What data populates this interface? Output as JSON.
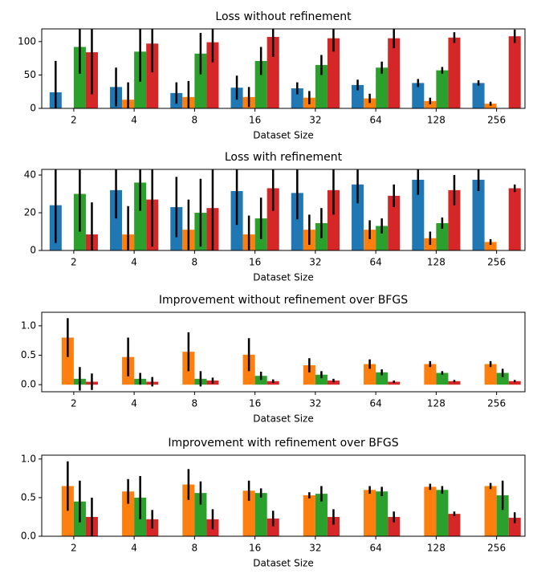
{
  "chart_data": [
    {
      "type": "bar",
      "title": "Loss without refinement",
      "xlabel": "Dataset Size",
      "categories": [
        "2",
        "4",
        "8",
        "16",
        "32",
        "64",
        "128",
        "256"
      ],
      "ylim": [
        0,
        119
      ],
      "yticks": [
        0,
        50,
        100
      ],
      "series": [
        {
          "color": "#1f77b4",
          "values": [
            24,
            32,
            23,
            31,
            30,
            35,
            38,
            38
          ],
          "errors": [
            47,
            29,
            16,
            18,
            9,
            8,
            6,
            4
          ]
        },
        {
          "color": "#ff7f0e",
          "values": [
            null,
            13,
            17,
            17,
            16,
            15,
            11,
            7
          ],
          "errors": [
            null,
            26,
            24,
            15,
            10,
            7,
            5,
            3
          ]
        },
        {
          "color": "#2ca02c",
          "values": [
            92,
            85,
            82,
            71,
            65,
            61,
            57,
            null
          ],
          "errors": [
            40,
            45,
            31,
            21,
            15,
            9,
            5,
            null
          ]
        },
        {
          "color": "#d62728",
          "values": [
            84,
            97,
            99,
            107,
            105,
            105,
            106,
            108
          ],
          "errors": [
            63,
            43,
            30,
            30,
            20,
            15,
            8,
            10
          ]
        }
      ]
    },
    {
      "type": "bar",
      "title": "Loss with refinement",
      "xlabel": "Dataset Size",
      "categories": [
        "2",
        "4",
        "8",
        "16",
        "32",
        "64",
        "128",
        "256"
      ],
      "ylim": [
        0,
        43
      ],
      "yticks": [
        0,
        20,
        40
      ],
      "series": [
        {
          "color": "#1f77b4",
          "values": [
            24,
            32,
            23,
            31.5,
            30.5,
            35,
            37.5,
            37.5
          ],
          "errors": [
            20,
            15,
            16,
            18,
            14,
            10,
            8,
            6
          ]
        },
        {
          "color": "#ff7f0e",
          "values": [
            null,
            8.5,
            11,
            8.5,
            11,
            11,
            6.5,
            4.5
          ],
          "errors": [
            null,
            15,
            16,
            10,
            8,
            5,
            3.5,
            1.5
          ]
        },
        {
          "color": "#2ca02c",
          "values": [
            30,
            36,
            20,
            17,
            14.5,
            13,
            14.5,
            null
          ],
          "errors": [
            20,
            15,
            18,
            11,
            8,
            4,
            3,
            null
          ]
        },
        {
          "color": "#d62728",
          "values": [
            8.5,
            27,
            22.5,
            33,
            32,
            29,
            32,
            33
          ],
          "errors": [
            17,
            25,
            25,
            12,
            13,
            6,
            8,
            2
          ]
        }
      ]
    },
    {
      "type": "bar",
      "title": "Improvement without refinement over BFGS",
      "xlabel": "Dataset Size",
      "categories": [
        "2",
        "4",
        "8",
        "16",
        "32",
        "64",
        "128",
        "256"
      ],
      "ylim": [
        -0.12,
        1.23
      ],
      "yticks": [
        {
          "value": 0,
          "label": "0.0"
        },
        {
          "value": 0.5,
          "label": "0.5"
        },
        {
          "value": 1,
          "label": "1.0"
        }
      ],
      "series": [
        {
          "color": "#1f77b4",
          "values": [
            0,
            0,
            0,
            0,
            0,
            0,
            0,
            0
          ],
          "errors": [
            0,
            0,
            0,
            0,
            0,
            0,
            0,
            0
          ]
        },
        {
          "color": "#ff7f0e",
          "values": [
            0.8,
            0.47,
            0.56,
            0.51,
            0.33,
            0.35,
            0.35,
            0.35
          ],
          "errors": [
            0.33,
            0.33,
            0.33,
            0.28,
            0.12,
            0.08,
            0.05,
            0.05
          ]
        },
        {
          "color": "#2ca02c",
          "values": [
            0.1,
            0.1,
            0.1,
            0.15,
            0.17,
            0.21,
            0.2,
            0.2
          ],
          "errors": [
            0.2,
            0.1,
            0.13,
            0.07,
            0.06,
            0.05,
            0.03,
            0.07
          ]
        },
        {
          "color": "#d62728",
          "values": [
            0.05,
            0.05,
            0.07,
            0.06,
            0.07,
            0.05,
            0.06,
            0.06
          ],
          "errors": [
            0.14,
            0.08,
            0.05,
            0.03,
            0.03,
            0.02,
            0.02,
            0.02
          ]
        }
      ]
    },
    {
      "type": "bar",
      "title": "Improvement with refinement over BFGS",
      "xlabel": "Dataset Size",
      "categories": [
        "2",
        "4",
        "8",
        "16",
        "32",
        "64",
        "128",
        "256"
      ],
      "ylim": [
        0,
        1.05
      ],
      "yticks": [
        {
          "value": 0,
          "label": "0.0"
        },
        {
          "value": 0.5,
          "label": "0.5"
        },
        {
          "value": 1,
          "label": "1.0"
        }
      ],
      "series": [
        {
          "color": "#1f77b4",
          "values": [
            0,
            0,
            0,
            0,
            0,
            0,
            0,
            0
          ],
          "errors": [
            0,
            0,
            0,
            0,
            0,
            0,
            0,
            0
          ]
        },
        {
          "color": "#ff7f0e",
          "values": [
            0.65,
            0.58,
            0.67,
            0.59,
            0.53,
            0.6,
            0.64,
            0.65
          ],
          "errors": [
            0.32,
            0.16,
            0.2,
            0.13,
            0.04,
            0.05,
            0.04,
            0.04
          ]
        },
        {
          "color": "#2ca02c",
          "values": [
            0.45,
            0.5,
            0.56,
            0.56,
            0.55,
            0.58,
            0.6,
            0.53
          ],
          "errors": [
            0.27,
            0.28,
            0.15,
            0.06,
            0.1,
            0.06,
            0.05,
            0.19
          ]
        },
        {
          "color": "#d62728",
          "values": [
            0.25,
            0.22,
            0.22,
            0.23,
            0.25,
            0.25,
            0.29,
            0.24
          ],
          "errors": [
            0.25,
            0.12,
            0.13,
            0.1,
            0.1,
            0.07,
            0.03,
            0.07
          ]
        }
      ]
    }
  ]
}
